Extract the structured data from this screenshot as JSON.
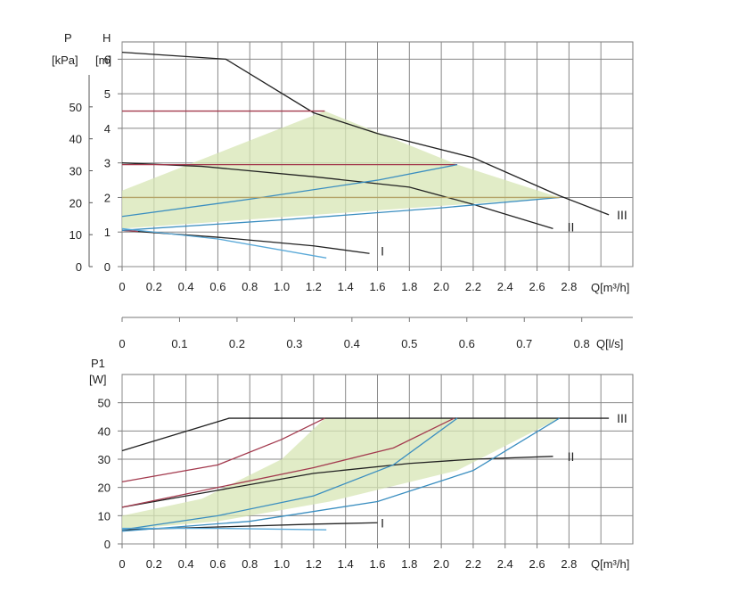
{
  "chart_data": [
    {
      "type": "line",
      "x_label": "Q[m³/h]",
      "x_ticks": [
        "0",
        "0.2",
        "0.4",
        "0.6",
        "0.8",
        "1.0",
        "1.2",
        "1.4",
        "1.6",
        "1.8",
        "2.0",
        "2.2",
        "2.4",
        "2.6",
        "2.8"
      ],
      "xlim": [
        0,
        3.2
      ],
      "left_axis_label": "P",
      "left_axis_unit": "[kPa]",
      "left_ticks": [
        "0",
        "10",
        "20",
        "30",
        "40",
        "50"
      ],
      "ylabel": "H",
      "y_unit": "[m]",
      "ylim": [
        0,
        6.5
      ],
      "y_ticks": [
        "0",
        "1",
        "2",
        "3",
        "4",
        "5",
        "6"
      ],
      "grid": true,
      "curve_labels": [
        {
          "text": "I",
          "x": 1.62,
          "y": 0.45
        },
        {
          "text": "II",
          "x": 2.79,
          "y": 1.15
        },
        {
          "text": "III",
          "x": 3.1,
          "y": 1.5
        }
      ],
      "shaded_region": [
        [
          0,
          2.2
        ],
        [
          1.27,
          4.5
        ],
        [
          2.1,
          2.95
        ],
        [
          2.74,
          2.0
        ],
        [
          0,
          1.1
        ]
      ],
      "series": [
        {
          "color": "#222222",
          "points": [
            [
              0,
              6.2
            ],
            [
              0.65,
              6.0
            ],
            [
              1.2,
              4.45
            ],
            [
              1.6,
              3.85
            ],
            [
              2.2,
              3.15
            ],
            [
              2.74,
              2.05
            ],
            [
              3.05,
              1.5
            ]
          ]
        },
        {
          "color": "#222222",
          "points": [
            [
              0,
              3.0
            ],
            [
              0.5,
              2.9
            ],
            [
              1.2,
              2.6
            ],
            [
              1.8,
              2.3
            ],
            [
              2.2,
              1.8
            ],
            [
              2.7,
              1.1
            ]
          ]
        },
        {
          "color": "#222222",
          "points": [
            [
              0,
              1.05
            ],
            [
              0.6,
              0.85
            ],
            [
              1.2,
              0.6
            ],
            [
              1.55,
              0.38
            ]
          ]
        },
        {
          "color": "#a33a4e",
          "points": [
            [
              0,
              4.5
            ],
            [
              1.27,
              4.5
            ]
          ]
        },
        {
          "color": "#a33a4e",
          "points": [
            [
              0,
              2.95
            ],
            [
              2.1,
              2.95
            ]
          ]
        },
        {
          "color": "#a33a4e",
          "points": [
            [
              0,
              1.05
            ],
            [
              0.1,
              1.02
            ]
          ]
        },
        {
          "color": "#3a8ec0",
          "points": [
            [
              0,
              1.45
            ],
            [
              0.8,
              1.95
            ],
            [
              1.6,
              2.5
            ],
            [
              2.1,
              2.95
            ]
          ]
        },
        {
          "color": "#3a8ec0",
          "points": [
            [
              0,
              1.05
            ],
            [
              1.0,
              1.35
            ],
            [
              2.0,
              1.7
            ],
            [
              2.74,
              2.0
            ]
          ]
        },
        {
          "color": "#5aa9d8",
          "points": [
            [
              0,
              1.1
            ],
            [
              0.6,
              0.8
            ],
            [
              1.28,
              0.25
            ]
          ]
        },
        {
          "color": "#b5a56a",
          "points": [
            [
              0,
              2.0
            ],
            [
              2.74,
              2.0
            ]
          ]
        }
      ]
    },
    {
      "type": "axis",
      "x_label": "Q[l/s]",
      "x_ticks": [
        "0",
        "0.1",
        "0.2",
        "0.3",
        "0.4",
        "0.5",
        "0.6",
        "0.7",
        "0.8"
      ],
      "xlim": [
        0,
        0.8
      ]
    },
    {
      "type": "line",
      "x_label": "Q[m³/h]",
      "x_ticks": [
        "0",
        "0.2",
        "0.4",
        "0.6",
        "0.8",
        "1.0",
        "1.2",
        "1.4",
        "1.6",
        "1.8",
        "2.0",
        "2.2",
        "2.4",
        "2.6",
        "2.8"
      ],
      "xlim": [
        0,
        3.2
      ],
      "ylabel": "P1",
      "y_unit": "[W]",
      "y_ticks": [
        "0",
        "10",
        "20",
        "30",
        "40",
        "50"
      ],
      "ylim": [
        0,
        60
      ],
      "grid": true,
      "curve_labels": [
        {
          "text": "I",
          "x": 1.62,
          "y": 7.5
        },
        {
          "text": "II",
          "x": 2.79,
          "y": 31
        },
        {
          "text": "III",
          "x": 3.1,
          "y": 44.5
        }
      ],
      "shaded_region": [
        [
          0,
          10
        ],
        [
          0.5,
          16
        ],
        [
          1.0,
          30
        ],
        [
          1.27,
          44.5
        ],
        [
          2.74,
          44.5
        ],
        [
          2.1,
          26
        ],
        [
          1.3,
          15
        ],
        [
          0.6,
          8
        ],
        [
          0,
          5
        ]
      ],
      "series": [
        {
          "color": "#222222",
          "points": [
            [
              0,
              33
            ],
            [
              0.67,
              44.5
            ],
            [
              3.05,
              44.5
            ]
          ]
        },
        {
          "color": "#222222",
          "points": [
            [
              0,
              13
            ],
            [
              0.6,
              19
            ],
            [
              1.2,
              25
            ],
            [
              1.8,
              28.5
            ],
            [
              2.2,
              30
            ],
            [
              2.7,
              31
            ]
          ]
        },
        {
          "color": "#222222",
          "points": [
            [
              0,
              5
            ],
            [
              0.6,
              6
            ],
            [
              1.2,
              7
            ],
            [
              1.6,
              7.5
            ]
          ]
        },
        {
          "color": "#a33a4e",
          "points": [
            [
              0,
              22
            ],
            [
              0.6,
              28
            ],
            [
              1.0,
              37
            ],
            [
              1.27,
              44.5
            ]
          ]
        },
        {
          "color": "#a33a4e",
          "points": [
            [
              0,
              13
            ],
            [
              0.6,
              20
            ],
            [
              1.2,
              27
            ],
            [
              1.7,
              34
            ],
            [
              2.08,
              44.5
            ]
          ]
        },
        {
          "color": "#3a8ec0",
          "points": [
            [
              0,
              5
            ],
            [
              0.6,
              10
            ],
            [
              1.2,
              17
            ],
            [
              1.7,
              28
            ],
            [
              2.1,
              44.5
            ]
          ]
        },
        {
          "color": "#3a8ec0",
          "points": [
            [
              0,
              4.5
            ],
            [
              0.8,
              8
            ],
            [
              1.6,
              15
            ],
            [
              2.2,
              26
            ],
            [
              2.74,
              44.5
            ]
          ]
        },
        {
          "color": "#5aa9d8",
          "points": [
            [
              0,
              5.5
            ],
            [
              0.6,
              5.5
            ],
            [
              1.28,
              5
            ]
          ]
        }
      ]
    }
  ]
}
